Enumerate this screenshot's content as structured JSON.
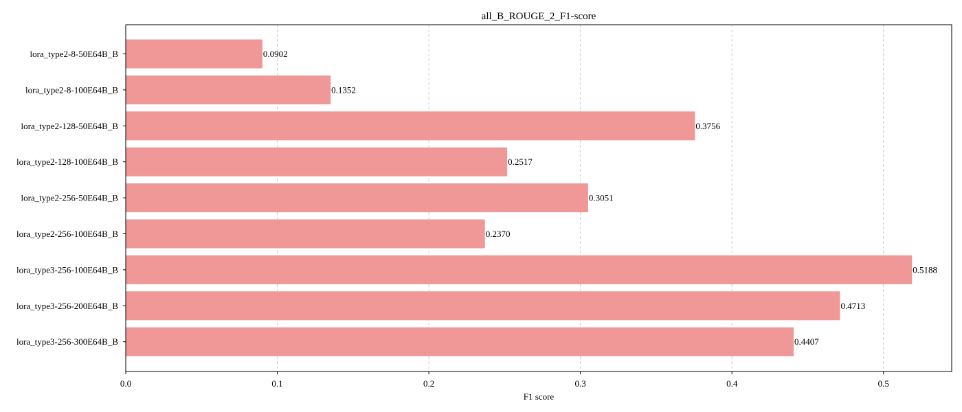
{
  "chart_data": {
    "type": "bar",
    "orientation": "horizontal",
    "title": "all_B_ROUGE_2_F1-score",
    "xlabel": "F1 score",
    "ylabel": "",
    "xlim": [
      0,
      0.545
    ],
    "xticks": [
      0.0,
      0.1,
      0.2,
      0.3,
      0.4,
      0.5
    ],
    "xtick_labels": [
      "0.0",
      "0.1",
      "0.2",
      "0.3",
      "0.4",
      "0.5"
    ],
    "grid": {
      "x": true,
      "y": false,
      "style": "dashed"
    },
    "bar_color": "#f09797",
    "categories": [
      "lora_type2-8-50E64B_B",
      "lora_type2-8-100E64B_B",
      "lora_type2-128-50E64B_B",
      "lora_type2-128-100E64B_B",
      "lora_type2-256-50E64B_B",
      "lora_type2-256-100E64B_B",
      "lora_type3-256-100E64B_B",
      "lora_type3-256-200E64B_B",
      "lora_type3-256-300E64B_B"
    ],
    "values": [
      0.0902,
      0.1352,
      0.3756,
      0.2517,
      0.3051,
      0.237,
      0.5188,
      0.4713,
      0.4407
    ],
    "value_labels": [
      "0.0902",
      "0.1352",
      "0.3756",
      "0.2517",
      "0.3051",
      "0.2370",
      "0.5188",
      "0.4713",
      "0.4407"
    ]
  }
}
